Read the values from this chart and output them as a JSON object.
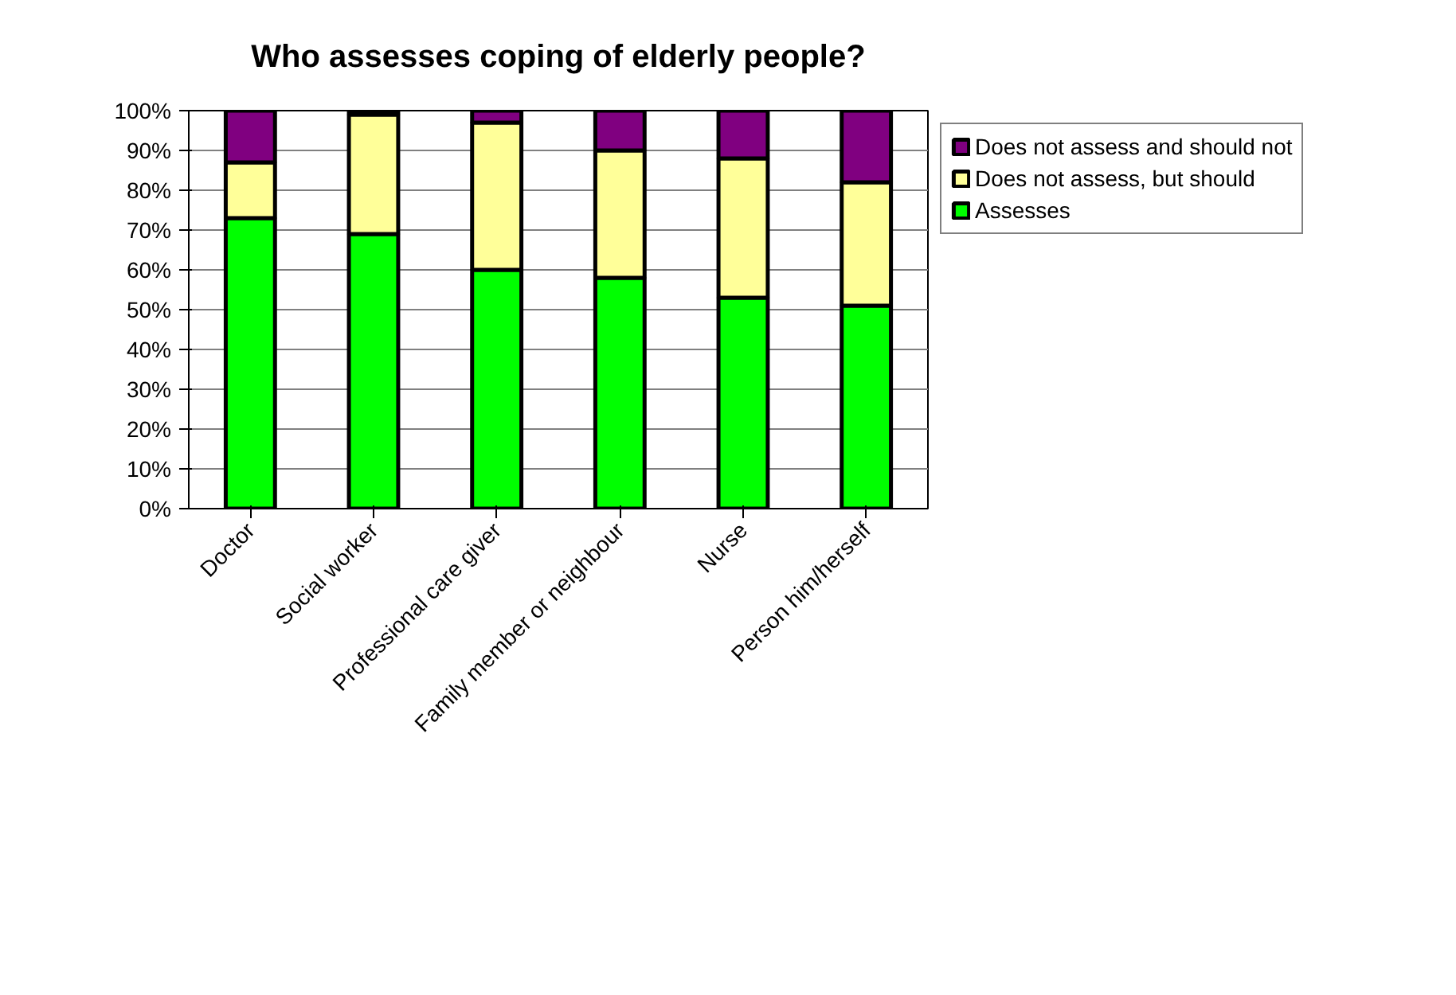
{
  "chart_data": {
    "type": "bar",
    "title": "Who assesses coping of elderly people?",
    "categories": [
      "Doctor",
      "Social worker",
      "Professional care giver",
      "Family member or neighbour",
      "Nurse",
      "Person him/herself"
    ],
    "stacked": true,
    "series": [
      {
        "name": "Assesses",
        "color": "#00ff00",
        "values": [
          73,
          69,
          60,
          58,
          53,
          51
        ]
      },
      {
        "name": "Does not assess, but should",
        "color": "#ffff99",
        "values": [
          14,
          30,
          37,
          32,
          35,
          31
        ]
      },
      {
        "name": "Does not assess and should not",
        "color": "#800080",
        "values": [
          13,
          1,
          3,
          10,
          12,
          18
        ]
      }
    ],
    "ylim": [
      0,
      100
    ],
    "yticks": [
      {
        "value": 0,
        "label": "0%"
      },
      {
        "value": 10,
        "label": "10%"
      },
      {
        "value": 20,
        "label": "20%"
      },
      {
        "value": 30,
        "label": "30%"
      },
      {
        "value": 40,
        "label": "40%"
      },
      {
        "value": 50,
        "label": "50%"
      },
      {
        "value": 60,
        "label": "60%"
      },
      {
        "value": 70,
        "label": "70%"
      },
      {
        "value": 80,
        "label": "80%"
      },
      {
        "value": 90,
        "label": "90%"
      },
      {
        "value": 100,
        "label": "100%"
      }
    ],
    "grid": "y",
    "legend": "right"
  }
}
